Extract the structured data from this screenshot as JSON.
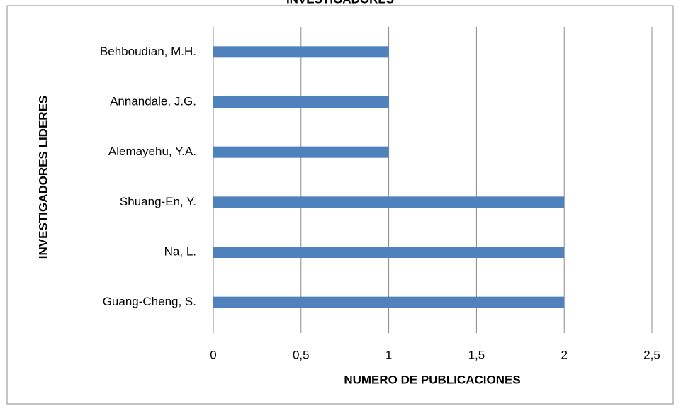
{
  "chart_data": {
    "type": "bar",
    "orientation": "horizontal",
    "title": "INVESTIGADORES",
    "categories": [
      "Behboudian, M.H.",
      "Annandale, J.G.",
      "Alemayehu, Y.A.",
      "Shuang-En, Y.",
      "Na, L.",
      "Guang-Cheng, S."
    ],
    "values": [
      1,
      1,
      1,
      2,
      2,
      2
    ],
    "color": "#4f81bd",
    "xlabel": "NUMERO DE PUBLICACIONES",
    "ylabel": "INVESTIGADORES LIDERES",
    "xlim": [
      0,
      2.5
    ],
    "xticks": [
      0,
      {
        "value": 0.5,
        "label": "0,5"
      },
      1,
      {
        "value": 1.5,
        "label": "1,5"
      },
      2,
      {
        "value": 2.5,
        "label": "2,5"
      }
    ],
    "grid": true
  }
}
